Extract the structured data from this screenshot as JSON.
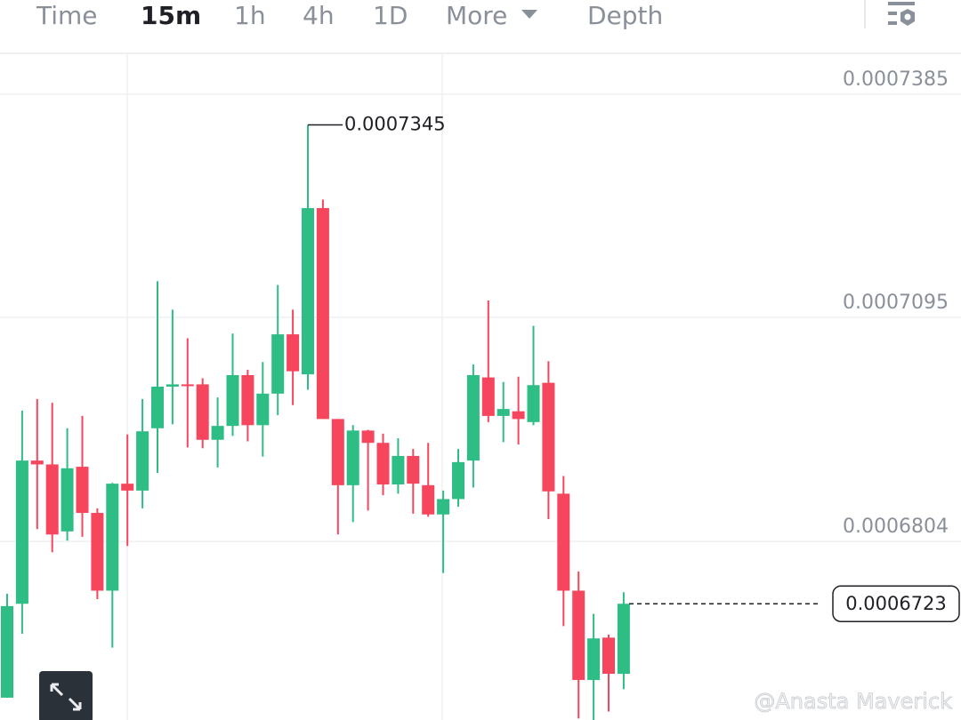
{
  "tabs": [
    "Time",
    "15m",
    "1h",
    "4h",
    "1D",
    "More",
    "Depth"
  ],
  "active_tab": 1,
  "watermark": "@Anasta Maverick",
  "chart_data": {
    "type": "candlestick",
    "up_color": "#2ebd85",
    "down_color": "#f6465d",
    "ylim": [
      0.0006572,
      0.0007438
    ],
    "yticks": [
      0.0007385,
      0.0007095,
      0.0006804
    ],
    "grid": true,
    "high_label": 0.0007345,
    "last_price": 0.0006723,
    "open": [
      0.0006601,
      0.0006723,
      0.0006909,
      0.0006904,
      0.0006817,
      0.0006901,
      0.0006841,
      0.000674,
      0.0006879,
      0.000687,
      0.0006951,
      0.0007005,
      0.0007008,
      0.0007008,
      0.0006936,
      0.0006954,
      0.000702,
      0.0006955,
      0.0006996,
      0.0007073,
      0.0007021,
      0.0007237,
      0.0006963,
      0.0006877,
      0.0006948,
      0.0006932,
      0.0006878,
      0.0006915,
      0.0006877,
      0.0006839,
      0.0006859,
      0.0006909,
      0.0007017,
      0.0006967,
      0.0006973,
      0.0006959,
      0.000701,
      0.0006866,
      0.000674,
      0.0006624,
      0.0006679,
      0.0006632
    ],
    "high": [
      0.0006736,
      0.0006974,
      0.0006989,
      0.0006984,
      0.0006951,
      0.0006967,
      0.0006847,
      0.000688,
      0.0006943,
      0.0006989,
      0.0007142,
      0.0007105,
      0.0007068,
      0.0007016,
      0.0006991,
      0.0007074,
      0.0007027,
      0.0007037,
      0.0007137,
      0.0007105,
      0.0007345,
      0.0007248,
      0.0006963,
      0.0006955,
      0.0006949,
      0.0006944,
      0.0006938,
      0.0006924,
      0.0006932,
      0.000687,
      0.0006924,
      0.0007034,
      0.0007117,
      0.0007011,
      0.0007018,
      0.0007084,
      0.0007038,
      0.0006889,
      0.0006765,
      0.000671,
      0.0006683,
      0.0006738
    ],
    "low": [
      0.0006601,
      0.0006684,
      0.000682,
      0.000679,
      0.0006805,
      0.000681,
      0.0006729,
      0.0006666,
      0.0006798,
      0.0006847,
      0.0006893,
      0.0006956,
      0.0006926,
      0.0006925,
      0.00069,
      0.0006941,
      0.0006934,
      0.0006914,
      0.0006968,
      0.0006981,
      0.0007001,
      0.0006963,
      0.0006813,
      0.0006829,
      0.0006844,
      0.0006864,
      0.0006866,
      0.000684,
      0.0006836,
      0.0006763,
      0.0006849,
      0.0006874,
      0.0006959,
      0.0006933,
      0.000693,
      0.0006955,
      0.0006833,
      0.0006694,
      0.0006574,
      0.0006572,
      0.0006583,
      0.0006612
    ],
    "close": [
      0.000672,
      0.0006909,
      0.0006904,
      0.0006813,
      0.0006899,
      0.0006841,
      0.000674,
      0.0006879,
      0.000687,
      0.0006947,
      0.0007005,
      0.0007008,
      0.0007006,
      0.0006936,
      0.0006954,
      0.000702,
      0.0006955,
      0.0006996,
      0.0007073,
      0.0007025,
      0.0007237,
      0.0006963,
      0.0006877,
      0.0006948,
      0.0006932,
      0.0006878,
      0.0006915,
      0.0006879,
      0.0006839,
      0.0006859,
      0.0006907,
      0.000702,
      0.0006967,
      0.0006976,
      0.0006963,
      0.0007007,
      0.0006869,
      0.000674,
      0.0006624,
      0.0006678,
      0.0006632,
      0.0006723
    ]
  }
}
